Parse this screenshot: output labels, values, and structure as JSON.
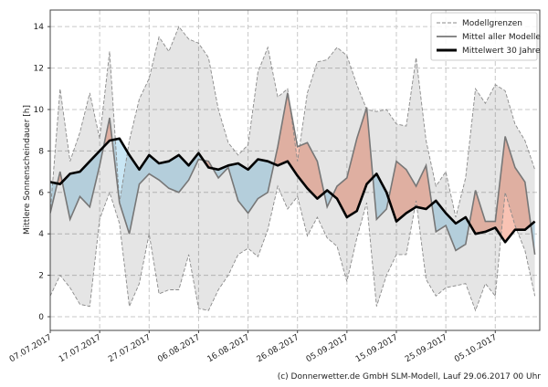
{
  "chart_data": {
    "type": "line",
    "title": "",
    "xlabel": "",
    "ylabel": "Mittlere Sonnenscheindauer [h]",
    "ylim": [
      -0.66,
      14.8
    ],
    "xlim": [
      "07.07.2017",
      "14.10.2017"
    ],
    "grid": true,
    "legend_position": "top-right",
    "yticks": [
      "0",
      "2",
      "4",
      "6",
      "8",
      "10",
      "12",
      "14"
    ],
    "xticks": [
      "07.07.2017",
      "17.07.2017",
      "27.07.2017",
      "06.08.2017",
      "16.08.2017",
      "26.08.2017",
      "05.09.2017",
      "15.09.2017",
      "25.09.2017",
      "05.10.2017"
    ],
    "x": [
      "07.07.2017",
      "09.07.2017",
      "11.07.2017",
      "13.07.2017",
      "15.07.2017",
      "17.07.2017",
      "19.07.2017",
      "21.07.2017",
      "23.07.2017",
      "25.07.2017",
      "27.07.2017",
      "29.07.2017",
      "31.07.2017",
      "02.08.2017",
      "04.08.2017",
      "06.08.2017",
      "08.08.2017",
      "10.08.2017",
      "12.08.2017",
      "14.08.2017",
      "16.08.2017",
      "18.08.2017",
      "20.08.2017",
      "22.08.2017",
      "24.08.2017",
      "26.08.2017",
      "28.08.2017",
      "30.08.2017",
      "01.09.2017",
      "03.09.2017",
      "05.09.2017",
      "07.09.2017",
      "09.09.2017",
      "11.09.2017",
      "13.09.2017",
      "15.09.2017",
      "17.09.2017",
      "19.09.2017",
      "21.09.2017",
      "23.09.2017",
      "25.09.2017",
      "27.09.2017",
      "29.09.2017",
      "01.10.2017",
      "03.10.2017",
      "05.10.2017",
      "07.10.2017",
      "09.10.2017",
      "11.10.2017",
      "13.10.2017"
    ],
    "series": [
      {
        "name": "Modellgrenzen",
        "role": "upper",
        "style": "dashed",
        "values": [
          5.0,
          11.0,
          7.5,
          8.9,
          10.8,
          8.6,
          12.8,
          5.5,
          8.5,
          10.5,
          11.5,
          13.5,
          12.8,
          14.0,
          13.4,
          13.2,
          12.5,
          10.0,
          8.4,
          7.8,
          8.3,
          11.8,
          13.0,
          10.6,
          11.0,
          7.5,
          10.8,
          12.3,
          12.4,
          13.0,
          12.6,
          11.2,
          10.0,
          9.9,
          10.0,
          9.3,
          9.2,
          12.5,
          8.5,
          6.3,
          7.0,
          4.8,
          6.7,
          11.0,
          10.3,
          11.2,
          10.9,
          9.3,
          8.5,
          7.1
        ]
      },
      {
        "name": "Modellgrenzen",
        "role": "lower",
        "style": "dashed",
        "values": [
          1.0,
          2.0,
          1.4,
          0.6,
          0.5,
          4.7,
          6.0,
          4.5,
          0.5,
          1.6,
          4.0,
          1.1,
          1.3,
          1.3,
          3.0,
          0.4,
          0.3,
          1.3,
          2.0,
          3.0,
          3.3,
          2.9,
          4.2,
          6.3,
          5.2,
          5.8,
          3.9,
          4.8,
          3.8,
          3.4,
          1.7,
          3.8,
          5.5,
          0.5,
          2.0,
          3.0,
          3.0,
          5.6,
          1.8,
          1.0,
          1.4,
          1.5,
          1.6,
          0.3,
          1.6,
          1.0,
          6.0,
          4.4,
          3.2,
          1.0
        ]
      },
      {
        "name": "Mittel aller Modelle",
        "style": "solid-gray",
        "values": [
          5.0,
          7.0,
          4.7,
          5.8,
          5.3,
          7.3,
          9.6,
          5.5,
          4.0,
          6.4,
          6.9,
          6.6,
          6.2,
          6.0,
          6.6,
          7.6,
          7.5,
          6.7,
          7.2,
          5.6,
          5.0,
          5.7,
          6.0,
          8.2,
          10.8,
          8.2,
          8.4,
          7.5,
          5.3,
          6.3,
          6.7,
          8.6,
          10.1,
          4.7,
          5.2,
          7.5,
          7.1,
          6.3,
          7.3,
          4.1,
          4.4,
          3.2,
          3.5,
          6.1,
          4.6,
          4.6,
          8.7,
          7.2,
          6.5,
          3.0
        ]
      },
      {
        "name": "Mittelwert 30 Jahre",
        "style": "solid-black-thick",
        "values": [
          6.5,
          6.4,
          6.9,
          7.0,
          7.5,
          8.0,
          8.5,
          8.6,
          7.8,
          7.1,
          7.8,
          7.4,
          7.5,
          7.8,
          7.3,
          7.9,
          7.2,
          7.1,
          7.3,
          7.4,
          7.1,
          7.6,
          7.5,
          7.3,
          7.5,
          6.8,
          6.2,
          5.7,
          6.1,
          5.7,
          4.8,
          5.1,
          6.4,
          6.9,
          6.0,
          4.6,
          5.0,
          5.3,
          5.2,
          5.6,
          5.0,
          4.5,
          4.8,
          4.0,
          4.1,
          4.3,
          3.6,
          4.2,
          4.2,
          4.6
        ]
      }
    ],
    "fill_colors": {
      "above_30yr": "#f9c3b4",
      "below_30yr": "#c9e6f4",
      "model_range": "#000000"
    }
  },
  "legend": [
    {
      "label": "Modellgrenzen"
    },
    {
      "label": "Mittel aller Modelle"
    },
    {
      "label": "Mittelwert 30 Jahre"
    }
  ],
  "footer": "(c) Donnerwetter.de GmbH SLM-Modell, Lauf 29.06.2017 00 Uhr"
}
